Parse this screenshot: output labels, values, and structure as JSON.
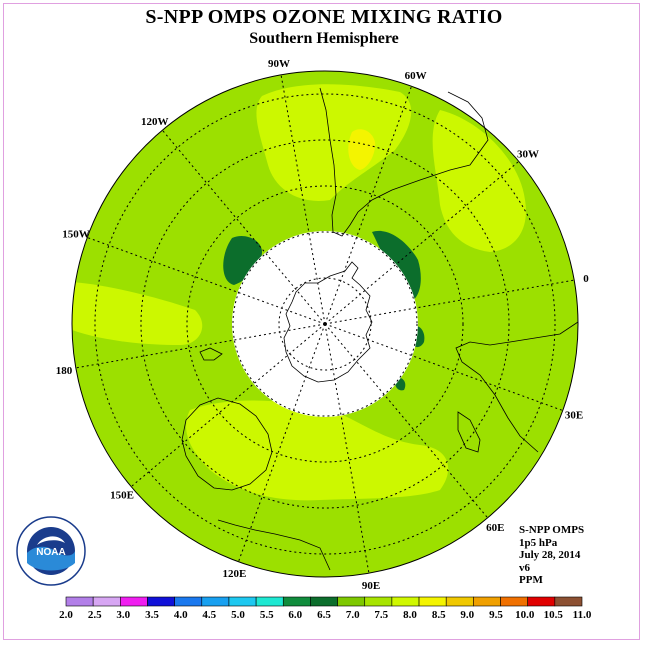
{
  "title": "S-NPP OMPS OZONE MIXING RATIO",
  "subtitle": "Southern Hemisphere",
  "longitude_labels": [
    "90W",
    "60W",
    "30W",
    "0",
    "30E",
    "60E",
    "90E",
    "120E",
    "150E",
    "180",
    "150W",
    "120W"
  ],
  "info": {
    "instrument": "S-NPP OMPS",
    "level": "1p5 hPa",
    "date": "July 28, 2014",
    "version": "v6",
    "units": "PPM"
  },
  "logo": {
    "text": "NOAA",
    "ring_text": "NATIONAL OCEANIC AND ATMOSPHERIC ADMINISTRATION · U.S. DEPARTMENT OF COMMERCE"
  },
  "colorbar": {
    "ticks": [
      "2.0",
      "2.5",
      "3.0",
      "3.5",
      "4.0",
      "4.5",
      "5.0",
      "5.5",
      "6.0",
      "6.5",
      "7.0",
      "7.5",
      "8.0",
      "8.5",
      "9.0",
      "9.5",
      "10.0",
      "10.5",
      "11.0"
    ],
    "colors": [
      "#b27fe8",
      "#d7a6f3",
      "#f01ef0",
      "#1010d8",
      "#1a78ee",
      "#18a0f0",
      "#1ec8f0",
      "#1ee8d2",
      "#108c3c",
      "#0c6e2c",
      "#7ec800",
      "#a8e400",
      "#d0f800",
      "#f4f400",
      "#f0c800",
      "#f0a000",
      "#f07000",
      "#e00000",
      "#8c5032"
    ]
  },
  "colors": {
    "background_field": "#9ce000",
    "high_band": "#ccf800",
    "peak": "#f4f400",
    "low": "#0c6e2c",
    "pole_mask": "#ffffff"
  }
}
